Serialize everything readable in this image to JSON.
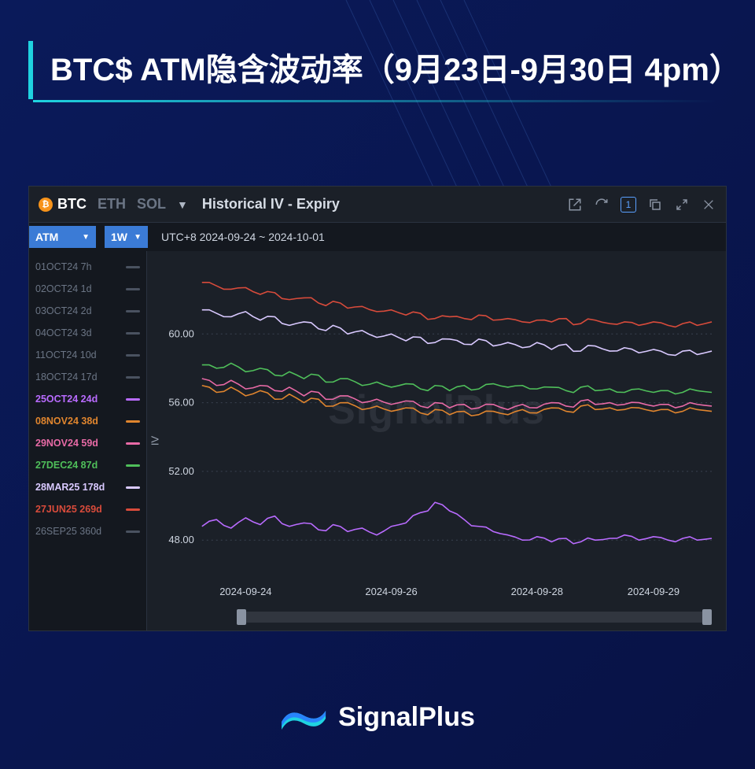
{
  "page": {
    "background_gradient": [
      "#0a1a5a",
      "#081245"
    ],
    "accent_color": "#1fd3e0",
    "title": "BTC$ ATM隐含波动率（9月23日-9月30日 4pm）"
  },
  "brand": {
    "name": "SignalPlus",
    "logo_colors": [
      "#1fd3e0",
      "#2a7bff"
    ]
  },
  "panel": {
    "bg": "#1b2028",
    "coins": {
      "active": "BTC",
      "list": [
        "BTC",
        "ETH",
        "SOL"
      ],
      "active_color": "#ffffff",
      "inactive_color": "#6b7585",
      "btc_icon_bg": "#f7931a"
    },
    "title": "Historical IV - Expiry",
    "top_icons": [
      "export",
      "refresh",
      "one",
      "copy",
      "expand",
      "close"
    ],
    "selectors": {
      "strike": "ATM",
      "range": "1W",
      "sel_bg": "#3b7bd6",
      "date_label": "UTC+8 2024-09-24 ~ 2024-10-01"
    },
    "watermark": "SignalPlus"
  },
  "legend": [
    {
      "label": "01OCT24 7h",
      "color": "#6b7585",
      "active": false
    },
    {
      "label": "02OCT24 1d",
      "color": "#6b7585",
      "active": false
    },
    {
      "label": "03OCT24 2d",
      "color": "#6b7585",
      "active": false
    },
    {
      "label": "04OCT24 3d",
      "color": "#6b7585",
      "active": false
    },
    {
      "label": "11OCT24 10d",
      "color": "#6b7585",
      "active": false
    },
    {
      "label": "18OCT24 17d",
      "color": "#6b7585",
      "active": false
    },
    {
      "label": "25OCT24 24d",
      "color": "#b96bff",
      "active": true
    },
    {
      "label": "08NOV24 38d",
      "color": "#e0852e",
      "active": true
    },
    {
      "label": "29NOV24 59d",
      "color": "#e86aa6",
      "active": true
    },
    {
      "label": "27DEC24 87d",
      "color": "#4fbf5a",
      "active": true
    },
    {
      "label": "28MAR25 178d",
      "color": "#d9c9ff",
      "active": true
    },
    {
      "label": "27JUN25 269d",
      "color": "#d84b3b",
      "active": true
    },
    {
      "label": "26SEP25 360d",
      "color": "#6b7585",
      "active": false
    }
  ],
  "chart": {
    "type": "line",
    "ylabel": "IV",
    "ylim": [
      46,
      64
    ],
    "yticks": [
      48,
      52,
      56,
      60
    ],
    "ytick_format": ".00",
    "xlim": [
      0,
      7
    ],
    "xticks": [
      {
        "pos": 0.6,
        "label": "2024-09-24"
      },
      {
        "pos": 2.6,
        "label": "2024-09-26"
      },
      {
        "pos": 4.6,
        "label": "2024-09-28"
      },
      {
        "pos": 6.2,
        "label": "2024-09-29"
      }
    ],
    "grid_color": "#3b4250",
    "grid_dash": "2,4",
    "axis_label_color": "#cfd6e1",
    "tick_fontsize": 13,
    "line_width": 1.6,
    "series": [
      {
        "name": "27JUN25 269d",
        "color": "#d84b3b",
        "y": [
          63.0,
          62.8,
          62.6,
          62.7,
          62.3,
          62.4,
          62.0,
          62.1,
          61.8,
          61.9,
          61.5,
          61.6,
          61.3,
          61.4,
          61.1,
          61.2,
          60.9,
          61.0,
          60.9,
          61.1,
          60.8,
          60.9,
          60.7,
          60.8,
          60.7,
          60.9,
          60.6,
          60.8,
          60.6,
          60.7,
          60.5,
          60.7,
          60.5,
          60.6,
          60.5,
          60.7
        ]
      },
      {
        "name": "28MAR25 178d",
        "color": "#d9c9ff",
        "y": [
          61.4,
          61.2,
          61.0,
          61.3,
          60.8,
          61.0,
          60.5,
          60.7,
          60.3,
          60.5,
          60.0,
          60.2,
          59.8,
          60.0,
          59.6,
          59.8,
          59.5,
          59.7,
          59.4,
          59.7,
          59.3,
          59.5,
          59.2,
          59.5,
          59.1,
          59.4,
          59.0,
          59.3,
          59.0,
          59.2,
          58.9,
          59.1,
          58.8,
          59.0,
          58.8,
          59.0
        ]
      },
      {
        "name": "27DEC24 87d",
        "color": "#4fbf5a",
        "y": [
          58.2,
          58.0,
          58.3,
          57.8,
          58.0,
          57.6,
          57.8,
          57.4,
          57.6,
          57.2,
          57.4,
          57.0,
          57.2,
          56.9,
          57.1,
          56.8,
          57.0,
          56.7,
          57.0,
          56.8,
          57.1,
          56.9,
          57.0,
          56.8,
          56.9,
          56.7,
          56.9,
          56.7,
          56.8,
          56.6,
          56.8,
          56.6,
          56.7,
          56.6,
          56.7,
          56.6
        ]
      },
      {
        "name": "29NOV24 59d",
        "color": "#e86aa6",
        "y": [
          57.4,
          57.0,
          57.3,
          56.8,
          57.0,
          56.7,
          56.9,
          56.4,
          56.6,
          56.2,
          56.4,
          56.0,
          56.2,
          55.9,
          56.1,
          55.8,
          56.0,
          55.7,
          55.9,
          55.7,
          55.9,
          55.6,
          55.9,
          55.7,
          56.0,
          55.8,
          56.1,
          55.9,
          56.0,
          55.9,
          56.0,
          55.8,
          55.9,
          55.8,
          55.9,
          55.8
        ]
      },
      {
        "name": "08NOV24 38d",
        "color": "#e0852e",
        "y": [
          57.0,
          56.6,
          56.9,
          56.4,
          56.7,
          56.2,
          56.5,
          56.0,
          56.2,
          55.8,
          56.0,
          55.6,
          55.8,
          55.5,
          55.7,
          55.4,
          55.6,
          55.3,
          55.5,
          55.3,
          55.5,
          55.3,
          55.6,
          55.4,
          55.7,
          55.5,
          55.8,
          55.6,
          55.7,
          55.6,
          55.7,
          55.5,
          55.6,
          55.5,
          55.6,
          55.5
        ]
      },
      {
        "name": "25OCT24 24d",
        "color": "#b96bff",
        "y": [
          48.8,
          49.2,
          48.7,
          49.3,
          48.9,
          49.4,
          48.8,
          49.0,
          48.6,
          48.9,
          48.5,
          48.7,
          48.3,
          48.8,
          49.0,
          49.6,
          50.2,
          49.7,
          49.2,
          48.8,
          48.5,
          48.3,
          48.0,
          48.2,
          47.9,
          48.1,
          47.9,
          48.0,
          48.1,
          48.3,
          48.0,
          48.2,
          48.0,
          48.1,
          48.0,
          48.1
        ]
      }
    ]
  }
}
